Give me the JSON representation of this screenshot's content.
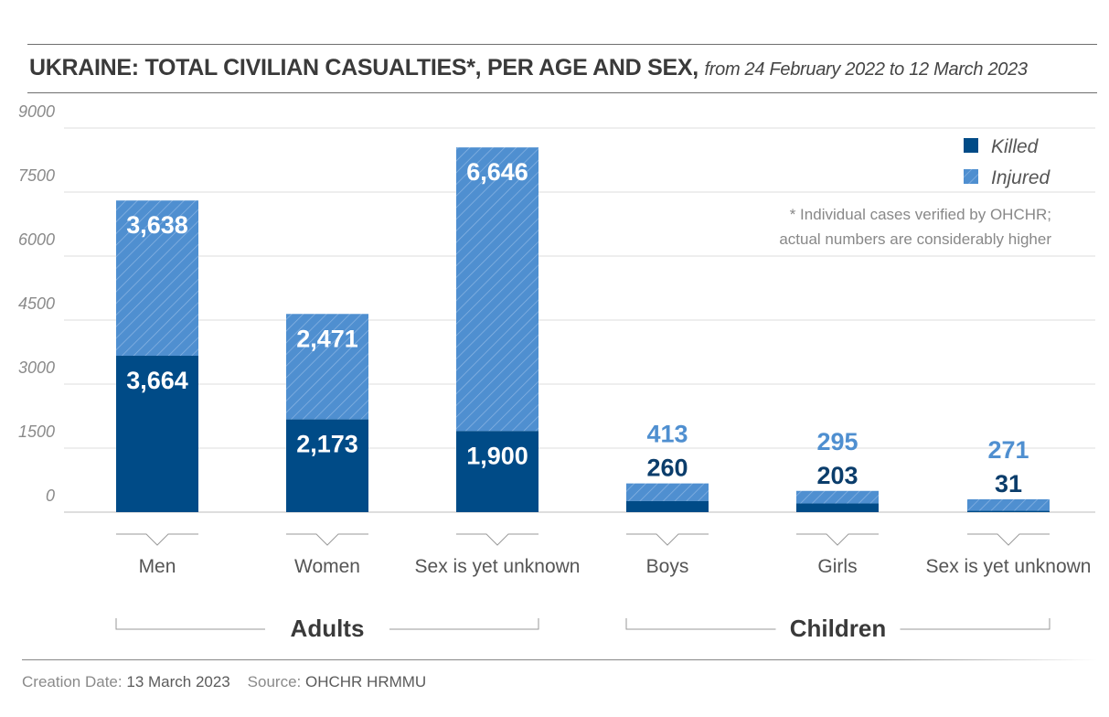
{
  "title": {
    "main": "UKRAINE: TOTAL CIVILIAN CASUALTIES*, PER AGE AND SEX,",
    "sub": "from 24 February 2022 to 12 March 2023"
  },
  "note": {
    "line1": "* Individual cases verified by OHCHR;",
    "line2": "actual numbers are considerably higher"
  },
  "footer": {
    "created_label": "Creation Date:",
    "created_value": "13 March 2023",
    "source_label": "Source:",
    "source_value": "OHCHR HRMMU"
  },
  "colors": {
    "killed": "#004b87",
    "injured": "#4f8fd0",
    "injured_label": "#4f8fd0",
    "label_white": "#ffffff",
    "killed_label_outside": "#0b3d6b"
  },
  "chart_data": {
    "type": "bar",
    "stacked": true,
    "categories": [
      "Men",
      "Women",
      "Sex is yet unknown",
      "Boys",
      "Girls",
      "Sex is yet unknown"
    ],
    "groups": [
      {
        "label": "Adults",
        "categories": [
          0,
          1,
          2
        ]
      },
      {
        "label": "Children",
        "categories": [
          3,
          4,
          5
        ]
      }
    ],
    "series": [
      {
        "name": "Killed",
        "values": [
          3664,
          2173,
          1900,
          260,
          203,
          31
        ],
        "labels": [
          "3,664",
          "2,173",
          "1,900",
          "260",
          "203",
          "31"
        ]
      },
      {
        "name": "Injured",
        "values": [
          3638,
          2471,
          6646,
          413,
          295,
          271
        ],
        "labels": [
          "3,638",
          "2,471",
          "6,646",
          "413",
          "295",
          "271"
        ]
      }
    ],
    "yticks": [
      "0",
      "1500",
      "3000",
      "4500",
      "6000",
      "7500",
      "9000"
    ],
    "ylim": [
      0,
      9000
    ],
    "grid": true,
    "legend": "top-right"
  }
}
